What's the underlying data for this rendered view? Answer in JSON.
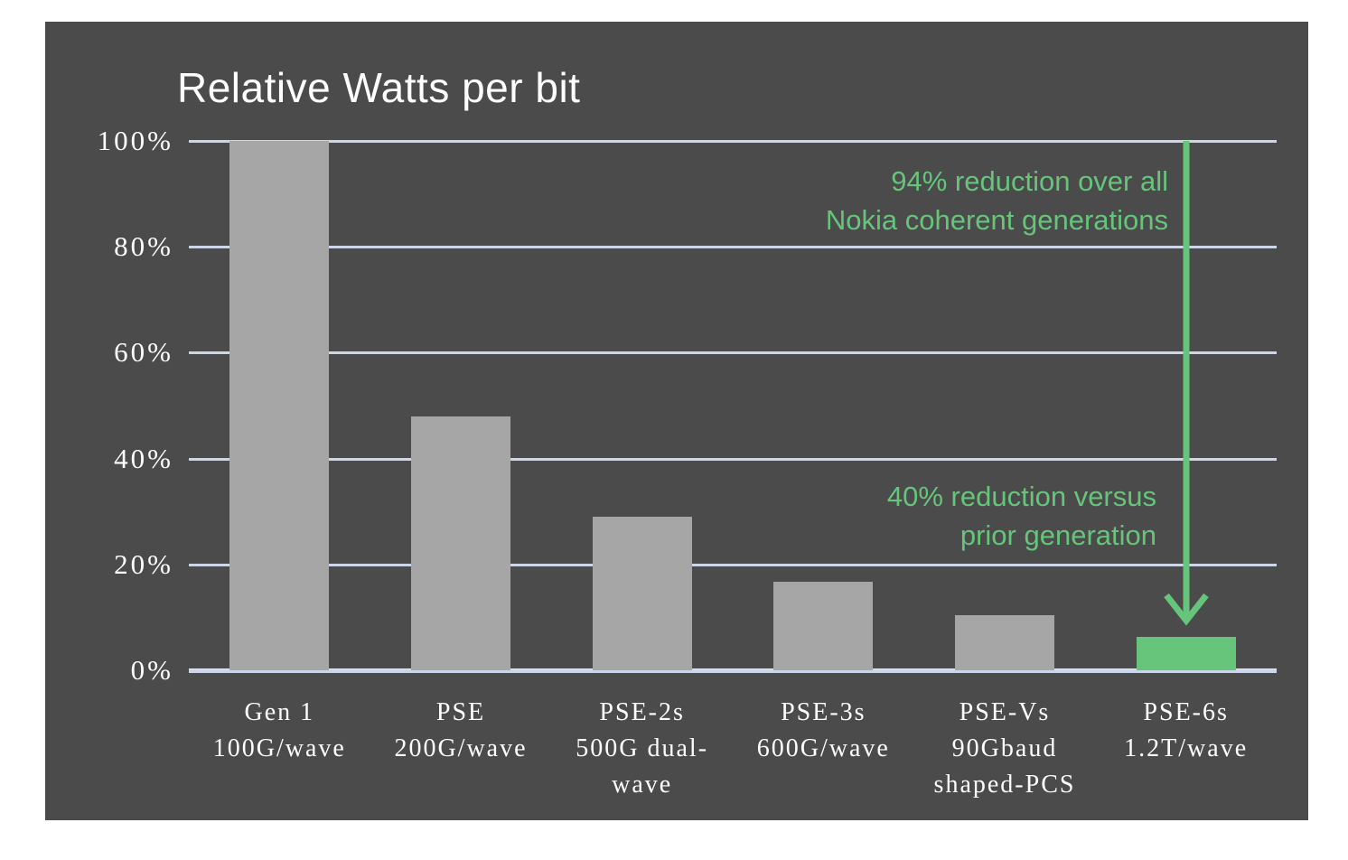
{
  "title": "Relative Watts per bit",
  "chart_data": {
    "type": "bar",
    "title": "Relative Watts per bit",
    "xlabel": "",
    "ylabel": "",
    "ylim": [
      0,
      100
    ],
    "grid": true,
    "legend": false,
    "yticks": [
      {
        "value": 100,
        "label": "100%"
      },
      {
        "value": 80,
        "label": "80%"
      },
      {
        "value": 60,
        "label": "60%"
      },
      {
        "value": 40,
        "label": "40%"
      },
      {
        "value": 20,
        "label": "20%"
      },
      {
        "value": 0,
        "label": "0%"
      }
    ],
    "categories": [
      {
        "lines": [
          "Gen 1",
          "100G/wave"
        ]
      },
      {
        "lines": [
          "PSE",
          "200G/wave"
        ]
      },
      {
        "lines": [
          "PSE-2s",
          "500G dual-",
          "wave"
        ]
      },
      {
        "lines": [
          "PSE-3s",
          "600G/wave"
        ]
      },
      {
        "lines": [
          "PSE-Vs",
          "90Gbaud",
          "shaped-PCS"
        ]
      },
      {
        "lines": [
          "PSE-6s",
          "1.2T/wave"
        ]
      }
    ],
    "values": [
      100,
      48,
      29,
      16.7,
      10.4,
      6.3
    ],
    "unit": "percent",
    "highlight_index": 5,
    "annotations": [
      {
        "lines": [
          "94% reduction over all",
          "Nokia coherent generations"
        ]
      },
      {
        "lines": [
          "40% reduction versus",
          "prior generation"
        ]
      }
    ]
  },
  "colors": {
    "slide_background": "#4b4b4b",
    "page_background": "#ffffff",
    "bar_gray": "#a6a6a6",
    "highlight_green": "#66c47b",
    "gridline": "#cdd5ea",
    "text_white": "#ffffff"
  }
}
